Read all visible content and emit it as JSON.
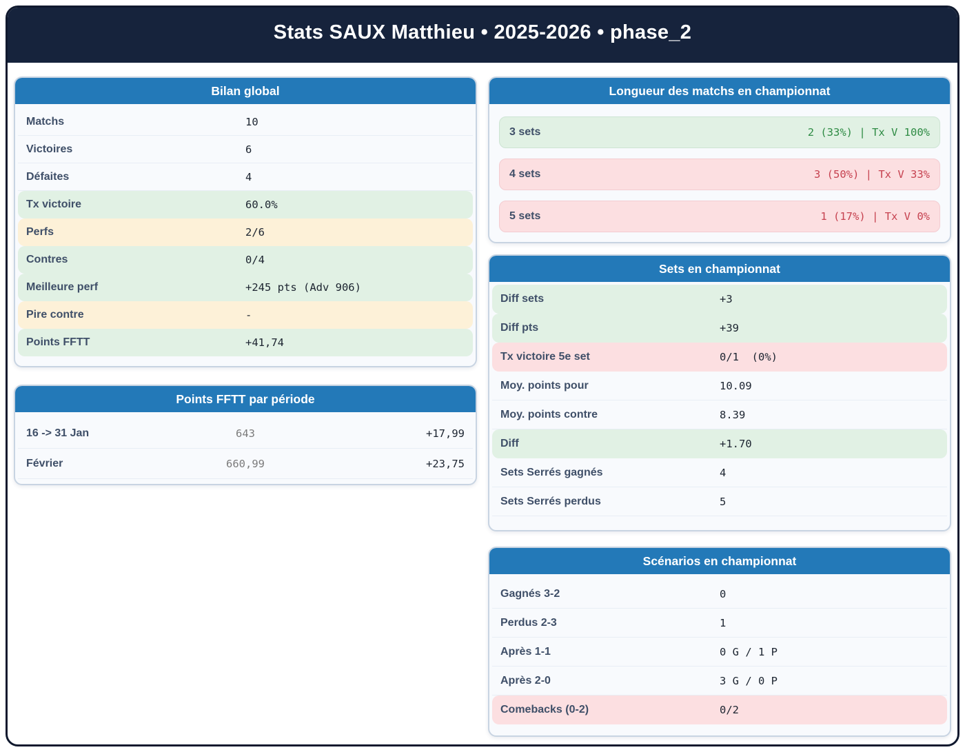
{
  "header": {
    "title": "Stats SAUX Matthieu • 2025-2026 • phase_2"
  },
  "panels": {
    "bilan": {
      "title": "Bilan global",
      "rows": [
        {
          "label": "Matchs",
          "value": "10",
          "highlight": "none"
        },
        {
          "label": "Victoires",
          "value": "6",
          "highlight": "none"
        },
        {
          "label": "Défaites",
          "value": "4",
          "highlight": "none"
        },
        {
          "label": "Tx victoire",
          "value": "60.0%",
          "highlight": "green"
        },
        {
          "label": "Perfs",
          "value": "2/6",
          "highlight": "yellow"
        },
        {
          "label": "Contres",
          "value": "0/4",
          "highlight": "green"
        },
        {
          "label": "Meilleure perf",
          "value": "+245 pts (Adv 906)",
          "highlight": "green"
        },
        {
          "label": "Pire contre",
          "value": "-",
          "highlight": "yellow"
        },
        {
          "label": "Points FFTT",
          "value": "+41,74",
          "highlight": "green"
        }
      ]
    },
    "periode": {
      "title": "Points FFTT par période",
      "rows": [
        {
          "label": "16 -> 31 Jan",
          "mid": "643",
          "value": "+17,99"
        },
        {
          "label": "Février",
          "mid": "660,99",
          "value": "+23,75"
        }
      ]
    },
    "longueur": {
      "title": "Longueur des matchs en championnat",
      "rows": [
        {
          "label": "3 sets",
          "value": "2 (33%) | Tx V 100%",
          "tone": "green"
        },
        {
          "label": "4 sets",
          "value": "3 (50%) | Tx V 33%",
          "tone": "red"
        },
        {
          "label": "5 sets",
          "value": "1 (17%) | Tx V 0%",
          "tone": "red"
        }
      ]
    },
    "sets": {
      "title": "Sets en championnat",
      "rows": [
        {
          "label": "Diff sets",
          "value": "+3",
          "highlight": "green"
        },
        {
          "label": "Diff pts",
          "value": "+39",
          "highlight": "green"
        },
        {
          "label": "Tx victoire 5e set",
          "value": "0/1  (0%)",
          "highlight": "red"
        },
        {
          "label": "Moy. points pour",
          "value": "10.09",
          "highlight": "none"
        },
        {
          "label": "Moy. points contre",
          "value": "8.39",
          "highlight": "none"
        },
        {
          "label": "Diff",
          "value": "+1.70",
          "highlight": "green"
        },
        {
          "label": "Sets Serrés gagnés",
          "value": "4",
          "highlight": "none"
        },
        {
          "label": "Sets Serrés perdus",
          "value": "5",
          "highlight": "none"
        }
      ]
    },
    "scenarios": {
      "title": "Scénarios en championnat",
      "rows": [
        {
          "label": "Gagnés 3-2",
          "value": "0",
          "highlight": "none"
        },
        {
          "label": "Perdus 2-3",
          "value": "1",
          "highlight": "none"
        },
        {
          "label": "Après 1-1",
          "value": "0 G / 1 P",
          "highlight": "none"
        },
        {
          "label": "Après 2-0",
          "value": "3 G / 0 P",
          "highlight": "none"
        },
        {
          "label": "Comebacks (0-2)",
          "value": "0/2",
          "highlight": "red"
        }
      ]
    }
  },
  "colors": {
    "navy": "#16233c",
    "page_border": "#10192e",
    "header_blue": "#2379b8",
    "panel_bg": "#f8fafd",
    "panel_border": "#c8d4e2",
    "divider": "#e8eef5",
    "label": "#3f4f68",
    "value": "#1c2430",
    "gray_value": "#7b7b7b",
    "green_bg": "#e1f1e4",
    "yellow_bg": "#fdf1d8",
    "red_bg": "#fcdfe1",
    "green_text": "#2e8b44",
    "red_text": "#c64250"
  }
}
